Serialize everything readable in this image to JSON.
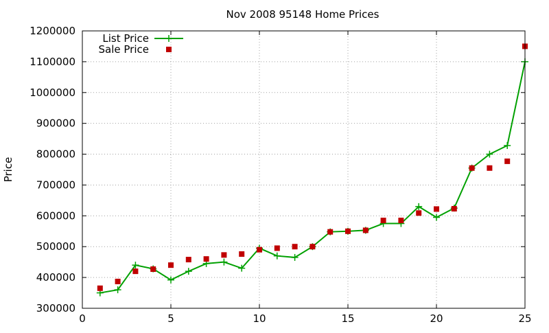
{
  "chart_data": {
    "type": "line",
    "title": "Nov 2008 95148 Home Prices",
    "xlabel": "",
    "ylabel": "Price",
    "xlim": [
      0,
      25
    ],
    "ylim": [
      300000,
      1200000
    ],
    "xticks": [
      0,
      5,
      10,
      15,
      20,
      25
    ],
    "yticks": [
      300000,
      400000,
      500000,
      600000,
      700000,
      800000,
      900000,
      1000000,
      1100000,
      1200000
    ],
    "grid": true,
    "legend_position": "top-left",
    "series": [
      {
        "name": "List Price",
        "style": "line-with-plus-markers",
        "color": "#00a000",
        "x": [
          1,
          2,
          3,
          4,
          5,
          6,
          7,
          8,
          9,
          10,
          11,
          12,
          13,
          14,
          15,
          16,
          17,
          18,
          19,
          20,
          21,
          22,
          23,
          24,
          25
        ],
        "values": [
          350000,
          360000,
          440000,
          428000,
          392000,
          420000,
          445000,
          450000,
          430000,
          495000,
          470000,
          465000,
          500000,
          548000,
          550000,
          553000,
          575000,
          575000,
          630000,
          595000,
          625000,
          755000,
          800000,
          828000,
          1100000
        ]
      },
      {
        "name": "Sale Price",
        "style": "square-markers",
        "color": "#c00000",
        "x": [
          1,
          2,
          3,
          4,
          5,
          6,
          7,
          8,
          9,
          10,
          11,
          12,
          13,
          14,
          15,
          16,
          17,
          18,
          19,
          20,
          21,
          22,
          23,
          24,
          25
        ],
        "values": [
          365000,
          387000,
          420000,
          427000,
          440000,
          458000,
          460000,
          473000,
          476000,
          490000,
          495000,
          500000,
          500000,
          548000,
          550000,
          553000,
          585000,
          585000,
          609000,
          622000,
          623000,
          755000,
          755000,
          777000,
          1150000
        ]
      }
    ]
  }
}
